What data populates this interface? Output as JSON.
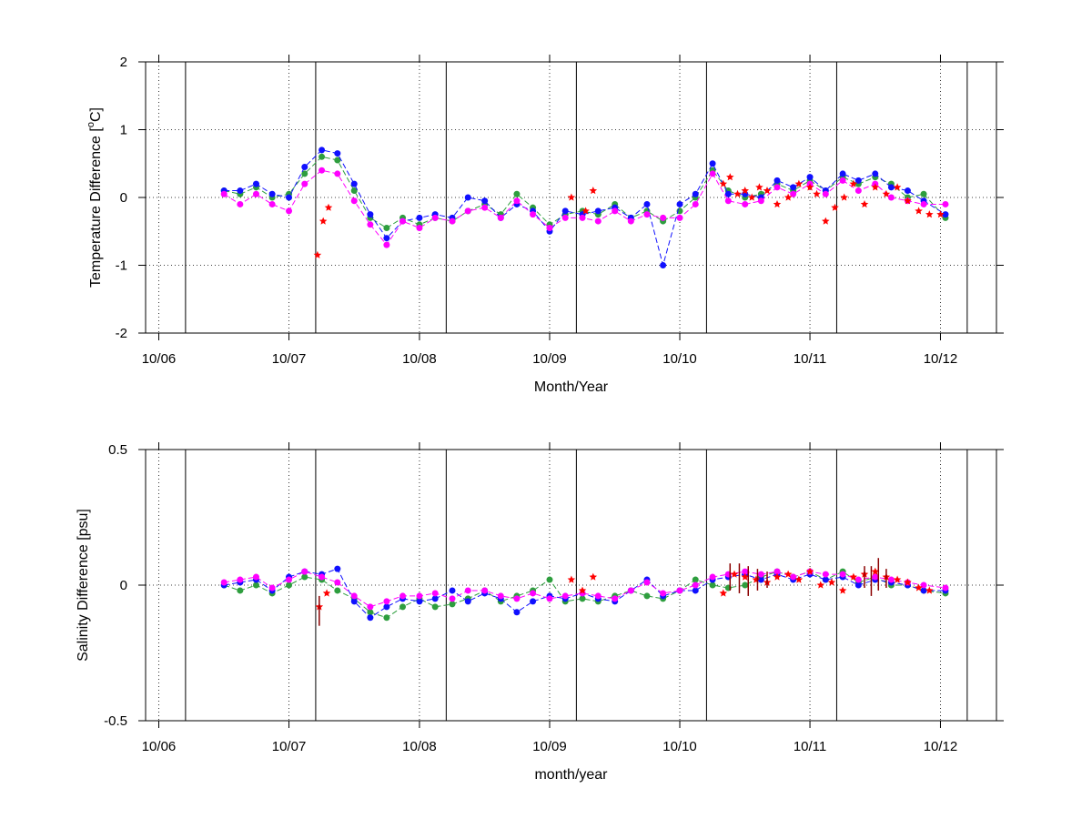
{
  "chart_data": [
    {
      "type": "line",
      "ylabel": "Temperature Difference [",
      "ylabel_sup": "o",
      "ylabel_end": "C]",
      "xlabel": "Month/Year",
      "xlim": [
        "2006-04-25",
        "2012-11-05"
      ],
      "ylim": [
        -2,
        2
      ],
      "yticks": [
        -2,
        -1,
        0,
        1,
        2
      ],
      "ytick_labels": [
        "-2",
        "-1",
        "0",
        "1",
        "2"
      ],
      "xticks": [
        {
          "date": "2006-06-01",
          "label": "10/06"
        },
        {
          "date": "2007-06-01",
          "label": "10/07"
        },
        {
          "date": "2008-06-01",
          "label": "10/08"
        },
        {
          "date": "2009-06-01",
          "label": "10/09"
        },
        {
          "date": "2010-06-01",
          "label": "10/10"
        },
        {
          "date": "2011-06-01",
          "label": "10/11"
        },
        {
          "date": "2012-06-01",
          "label": "10/12"
        }
      ],
      "vertical_lines": [
        "2006-08-15",
        "2007-08-15",
        "2008-08-15",
        "2009-08-15",
        "2010-08-15",
        "2011-08-15",
        "2012-08-15"
      ],
      "grid": "dotted",
      "series": [
        {
          "color": "#2e9e3e",
          "marker": "dot",
          "x": [
            "2006-12-01",
            "2007-01-15",
            "2007-03-01",
            "2007-04-15",
            "2007-06-01",
            "2007-07-15",
            "2007-09-01",
            "2007-10-15",
            "2007-12-01",
            "2008-01-15",
            "2008-03-01",
            "2008-04-15",
            "2008-06-01",
            "2008-07-15",
            "2008-09-01",
            "2008-10-15",
            "2008-12-01",
            "2009-01-15",
            "2009-03-01",
            "2009-04-15",
            "2009-06-01",
            "2009-07-15",
            "2009-09-01",
            "2009-10-15",
            "2009-12-01",
            "2010-01-15",
            "2010-03-01",
            "2010-04-15",
            "2010-06-01",
            "2010-07-15",
            "2010-09-01",
            "2010-10-15",
            "2010-12-01",
            "2011-01-15",
            "2011-03-01",
            "2011-04-15",
            "2011-06-01",
            "2011-07-15",
            "2011-09-01",
            "2011-10-15",
            "2011-12-01",
            "2012-01-15",
            "2012-03-01",
            "2012-04-15",
            "2012-06-15"
          ],
          "y": [
            0.1,
            0.05,
            0.15,
            0.0,
            0.05,
            0.35,
            0.6,
            0.55,
            0.1,
            -0.3,
            -0.45,
            -0.3,
            -0.4,
            -0.3,
            -0.35,
            -0.2,
            -0.1,
            -0.25,
            0.05,
            -0.15,
            -0.4,
            -0.25,
            -0.2,
            -0.25,
            -0.1,
            -0.3,
            -0.2,
            -0.35,
            -0.2,
            0.0,
            0.4,
            0.1,
            0.0,
            0.05,
            0.2,
            0.1,
            0.25,
            0.1,
            0.3,
            0.2,
            0.3,
            0.2,
            0.0,
            0.05,
            -0.3
          ]
        },
        {
          "color": "#1010ff",
          "marker": "dot",
          "x": [
            "2006-12-01",
            "2007-01-15",
            "2007-03-01",
            "2007-04-15",
            "2007-06-01",
            "2007-07-15",
            "2007-09-01",
            "2007-10-15",
            "2007-12-01",
            "2008-01-15",
            "2008-03-01",
            "2008-04-15",
            "2008-06-01",
            "2008-07-15",
            "2008-09-01",
            "2008-10-15",
            "2008-12-01",
            "2009-01-15",
            "2009-03-01",
            "2009-04-15",
            "2009-06-01",
            "2009-07-15",
            "2009-09-01",
            "2009-10-15",
            "2009-12-01",
            "2010-01-15",
            "2010-03-01",
            "2010-04-15",
            "2010-06-01",
            "2010-07-15",
            "2010-09-01",
            "2010-10-15",
            "2010-12-01",
            "2011-01-15",
            "2011-03-01",
            "2011-04-15",
            "2011-06-01",
            "2011-07-15",
            "2011-09-01",
            "2011-10-15",
            "2011-12-01",
            "2012-01-15",
            "2012-03-01",
            "2012-04-15",
            "2012-06-15"
          ],
          "y": [
            0.1,
            0.1,
            0.2,
            0.05,
            0.0,
            0.45,
            0.7,
            0.65,
            0.2,
            -0.25,
            -0.6,
            -0.35,
            -0.3,
            -0.25,
            -0.3,
            0.0,
            -0.05,
            -0.3,
            -0.1,
            -0.2,
            -0.5,
            -0.2,
            -0.25,
            -0.2,
            -0.15,
            -0.3,
            -0.1,
            -1.0,
            -0.1,
            0.05,
            0.5,
            0.05,
            0.05,
            0.0,
            0.25,
            0.15,
            0.3,
            0.1,
            0.35,
            0.25,
            0.35,
            0.15,
            0.1,
            -0.05,
            -0.25
          ]
        },
        {
          "color": "#ff00ff",
          "marker": "dot",
          "x": [
            "2006-12-01",
            "2007-01-15",
            "2007-03-01",
            "2007-04-15",
            "2007-06-01",
            "2007-07-15",
            "2007-09-01",
            "2007-10-15",
            "2007-12-01",
            "2008-01-15",
            "2008-03-01",
            "2008-04-15",
            "2008-06-01",
            "2008-07-15",
            "2008-09-01",
            "2008-10-15",
            "2008-12-01",
            "2009-01-15",
            "2009-03-01",
            "2009-04-15",
            "2009-06-01",
            "2009-07-15",
            "2009-09-01",
            "2009-10-15",
            "2009-12-01",
            "2010-01-15",
            "2010-03-01",
            "2010-04-15",
            "2010-06-01",
            "2010-07-15",
            "2010-09-01",
            "2010-10-15",
            "2010-12-01",
            "2011-01-15",
            "2011-03-01",
            "2011-04-15",
            "2011-06-01",
            "2011-07-15",
            "2011-09-01",
            "2011-10-15",
            "2011-12-01",
            "2012-01-15",
            "2012-03-01",
            "2012-04-15",
            "2012-06-15"
          ],
          "y": [
            0.05,
            -0.1,
            0.05,
            -0.1,
            -0.2,
            0.2,
            0.4,
            0.35,
            -0.05,
            -0.4,
            -0.7,
            -0.35,
            -0.45,
            -0.3,
            -0.35,
            -0.2,
            -0.15,
            -0.3,
            -0.05,
            -0.25,
            -0.45,
            -0.3,
            -0.3,
            -0.35,
            -0.2,
            -0.35,
            -0.25,
            -0.3,
            -0.3,
            -0.1,
            0.35,
            -0.05,
            -0.1,
            -0.05,
            0.15,
            0.05,
            0.2,
            0.05,
            0.25,
            0.1,
            0.2,
            0.0,
            -0.05,
            -0.1,
            -0.1
          ]
        },
        {
          "color": "#ff0000",
          "marker": "star",
          "x": [
            "2007-08-20",
            "2007-09-05",
            "2007-09-20",
            "2009-08-01",
            "2009-09-10",
            "2009-10-01",
            "2010-10-01",
            "2010-10-20",
            "2010-11-10",
            "2010-12-01",
            "2010-12-20",
            "2011-01-10",
            "2011-02-01",
            "2011-03-01",
            "2011-04-01",
            "2011-05-01",
            "2011-06-01",
            "2011-06-20",
            "2011-07-15",
            "2011-08-10",
            "2011-09-05",
            "2011-10-01",
            "2011-11-01",
            "2011-12-01",
            "2012-01-01",
            "2012-02-01",
            "2012-03-01",
            "2012-04-01",
            "2012-05-01",
            "2012-06-01"
          ],
          "y": [
            -0.85,
            -0.35,
            -0.15,
            0.0,
            -0.2,
            0.1,
            0.2,
            0.3,
            0.05,
            0.1,
            0.0,
            0.15,
            0.1,
            -0.1,
            0.0,
            0.2,
            0.15,
            0.05,
            -0.35,
            -0.15,
            0.0,
            0.2,
            -0.1,
            0.15,
            0.05,
            0.15,
            -0.05,
            -0.2,
            -0.25,
            -0.25
          ]
        }
      ]
    },
    {
      "type": "line",
      "ylabel": "Salinity Difference [psu]",
      "xlabel": "month/year",
      "xlim": [
        "2006-04-25",
        "2012-11-05"
      ],
      "ylim": [
        -0.5,
        0.5
      ],
      "yticks": [
        -0.5,
        0,
        0.5
      ],
      "ytick_labels": [
        "-0.5",
        "0",
        "0.5"
      ],
      "xticks": [
        {
          "date": "2006-06-01",
          "label": "10/06"
        },
        {
          "date": "2007-06-01",
          "label": "10/07"
        },
        {
          "date": "2008-06-01",
          "label": "10/08"
        },
        {
          "date": "2009-06-01",
          "label": "10/09"
        },
        {
          "date": "2010-06-01",
          "label": "10/10"
        },
        {
          "date": "2011-06-01",
          "label": "10/11"
        },
        {
          "date": "2012-06-01",
          "label": "10/12"
        }
      ],
      "vertical_lines": [
        "2006-08-15",
        "2007-08-15",
        "2008-08-15",
        "2009-08-15",
        "2010-08-15",
        "2011-08-15",
        "2012-08-15"
      ],
      "grid": "dotted",
      "series": [
        {
          "color": "#2e9e3e",
          "marker": "dot",
          "x": [
            "2006-12-01",
            "2007-01-15",
            "2007-03-01",
            "2007-04-15",
            "2007-06-01",
            "2007-07-15",
            "2007-09-01",
            "2007-10-15",
            "2007-12-01",
            "2008-01-15",
            "2008-03-01",
            "2008-04-15",
            "2008-06-01",
            "2008-07-15",
            "2008-09-01",
            "2008-10-15",
            "2008-12-01",
            "2009-01-15",
            "2009-03-01",
            "2009-04-15",
            "2009-06-01",
            "2009-07-15",
            "2009-09-01",
            "2009-10-15",
            "2009-12-01",
            "2010-01-15",
            "2010-03-01",
            "2010-04-15",
            "2010-06-01",
            "2010-07-15",
            "2010-09-01",
            "2010-10-15",
            "2010-12-01",
            "2011-01-15",
            "2011-03-01",
            "2011-04-15",
            "2011-06-01",
            "2011-07-15",
            "2011-09-01",
            "2011-10-15",
            "2011-12-01",
            "2012-01-15",
            "2012-03-01",
            "2012-04-15",
            "2012-06-15"
          ],
          "y": [
            0.0,
            -0.02,
            0.0,
            -0.03,
            0.0,
            0.03,
            0.02,
            -0.02,
            -0.05,
            -0.1,
            -0.12,
            -0.08,
            -0.05,
            -0.08,
            -0.07,
            -0.05,
            -0.02,
            -0.06,
            -0.04,
            -0.02,
            0.02,
            -0.06,
            -0.05,
            -0.06,
            -0.04,
            -0.02,
            -0.04,
            -0.05,
            -0.02,
            0.02,
            0.0,
            -0.01,
            0.0,
            0.03,
            0.05,
            0.03,
            0.05,
            0.02,
            0.05,
            0.01,
            0.03,
            0.0,
            0.0,
            -0.02,
            -0.03
          ]
        },
        {
          "color": "#1010ff",
          "marker": "dot",
          "x": [
            "2006-12-01",
            "2007-01-15",
            "2007-03-01",
            "2007-04-15",
            "2007-06-01",
            "2007-07-15",
            "2007-09-01",
            "2007-10-15",
            "2007-12-01",
            "2008-01-15",
            "2008-03-01",
            "2008-04-15",
            "2008-06-01",
            "2008-07-15",
            "2008-09-01",
            "2008-10-15",
            "2008-12-01",
            "2009-01-15",
            "2009-03-01",
            "2009-04-15",
            "2009-06-01",
            "2009-07-15",
            "2009-09-01",
            "2009-10-15",
            "2009-12-01",
            "2010-01-15",
            "2010-03-01",
            "2010-04-15",
            "2010-06-01",
            "2010-07-15",
            "2010-09-01",
            "2010-10-15",
            "2010-12-01",
            "2011-01-15",
            "2011-03-01",
            "2011-04-15",
            "2011-06-01",
            "2011-07-15",
            "2011-09-01",
            "2011-10-15",
            "2011-12-01",
            "2012-01-15",
            "2012-03-01",
            "2012-04-15",
            "2012-06-15"
          ],
          "y": [
            0.0,
            0.01,
            0.02,
            -0.02,
            0.03,
            0.05,
            0.04,
            0.06,
            -0.06,
            -0.12,
            -0.08,
            -0.05,
            -0.06,
            -0.05,
            -0.02,
            -0.06,
            -0.03,
            -0.05,
            -0.1,
            -0.06,
            -0.04,
            -0.05,
            -0.03,
            -0.05,
            -0.06,
            -0.02,
            0.02,
            -0.04,
            -0.02,
            -0.02,
            0.02,
            0.03,
            0.04,
            0.02,
            0.04,
            0.02,
            0.04,
            0.02,
            0.03,
            0.0,
            0.02,
            0.01,
            0.0,
            -0.02,
            -0.02
          ]
        },
        {
          "color": "#ff00ff",
          "marker": "dot",
          "x": [
            "2006-12-01",
            "2007-01-15",
            "2007-03-01",
            "2007-04-15",
            "2007-06-01",
            "2007-07-15",
            "2007-09-01",
            "2007-10-15",
            "2007-12-01",
            "2008-01-15",
            "2008-03-01",
            "2008-04-15",
            "2008-06-01",
            "2008-07-15",
            "2008-09-01",
            "2008-10-15",
            "2008-12-01",
            "2009-01-15",
            "2009-03-01",
            "2009-04-15",
            "2009-06-01",
            "2009-07-15",
            "2009-09-01",
            "2009-10-15",
            "2009-12-01",
            "2010-01-15",
            "2010-03-01",
            "2010-04-15",
            "2010-06-01",
            "2010-07-15",
            "2010-09-01",
            "2010-10-15",
            "2010-12-01",
            "2011-01-15",
            "2011-03-01",
            "2011-04-15",
            "2011-06-01",
            "2011-07-15",
            "2011-09-01",
            "2011-10-15",
            "2011-12-01",
            "2012-01-15",
            "2012-03-01",
            "2012-04-15",
            "2012-06-15"
          ],
          "y": [
            0.01,
            0.02,
            0.03,
            -0.01,
            0.02,
            0.05,
            0.03,
            0.01,
            -0.04,
            -0.08,
            -0.06,
            -0.04,
            -0.04,
            -0.03,
            -0.05,
            -0.02,
            -0.02,
            -0.04,
            -0.05,
            -0.03,
            -0.05,
            -0.04,
            -0.03,
            -0.04,
            -0.05,
            -0.02,
            0.01,
            -0.03,
            -0.02,
            0.0,
            0.03,
            0.04,
            0.05,
            0.04,
            0.05,
            0.03,
            0.05,
            0.04,
            0.04,
            0.02,
            0.03,
            0.02,
            0.01,
            0.0,
            -0.01
          ]
        },
        {
          "color": "#ff0000",
          "marker": "star",
          "x": [
            "2007-08-25",
            "2007-09-15",
            "2009-08-01",
            "2009-09-01",
            "2009-10-01",
            "2010-10-01",
            "2010-11-01",
            "2010-12-01",
            "2011-01-01",
            "2011-02-01",
            "2011-03-01",
            "2011-04-01",
            "2011-05-01",
            "2011-06-01",
            "2011-07-01",
            "2011-08-01",
            "2011-09-01",
            "2011-10-01",
            "2011-11-01",
            "2011-12-01",
            "2012-01-01",
            "2012-02-01",
            "2012-03-01",
            "2012-04-01",
            "2012-05-01"
          ],
          "y": [
            -0.08,
            -0.03,
            0.02,
            -0.02,
            0.03,
            -0.03,
            0.04,
            0.03,
            0.02,
            0.01,
            0.03,
            0.04,
            0.02,
            0.05,
            0.0,
            0.01,
            -0.02,
            0.03,
            0.04,
            0.05,
            0.03,
            0.02,
            0.01,
            -0.01,
            -0.02
          ]
        }
      ],
      "error_bars": {
        "color": "#8b0000",
        "x": [
          "2007-08-25",
          "2010-10-20",
          "2010-11-15",
          "2010-12-10",
          "2011-01-05",
          "2011-02-01",
          "2011-11-01",
          "2011-11-20",
          "2011-12-10",
          "2012-01-01"
        ],
        "lower": [
          -0.15,
          -0.02,
          -0.03,
          -0.04,
          -0.02,
          -0.01,
          -0.01,
          -0.04,
          -0.02,
          -0.01
        ],
        "upper": [
          -0.04,
          0.08,
          0.08,
          0.07,
          0.06,
          0.05,
          0.07,
          0.07,
          0.1,
          0.06
        ]
      }
    }
  ]
}
